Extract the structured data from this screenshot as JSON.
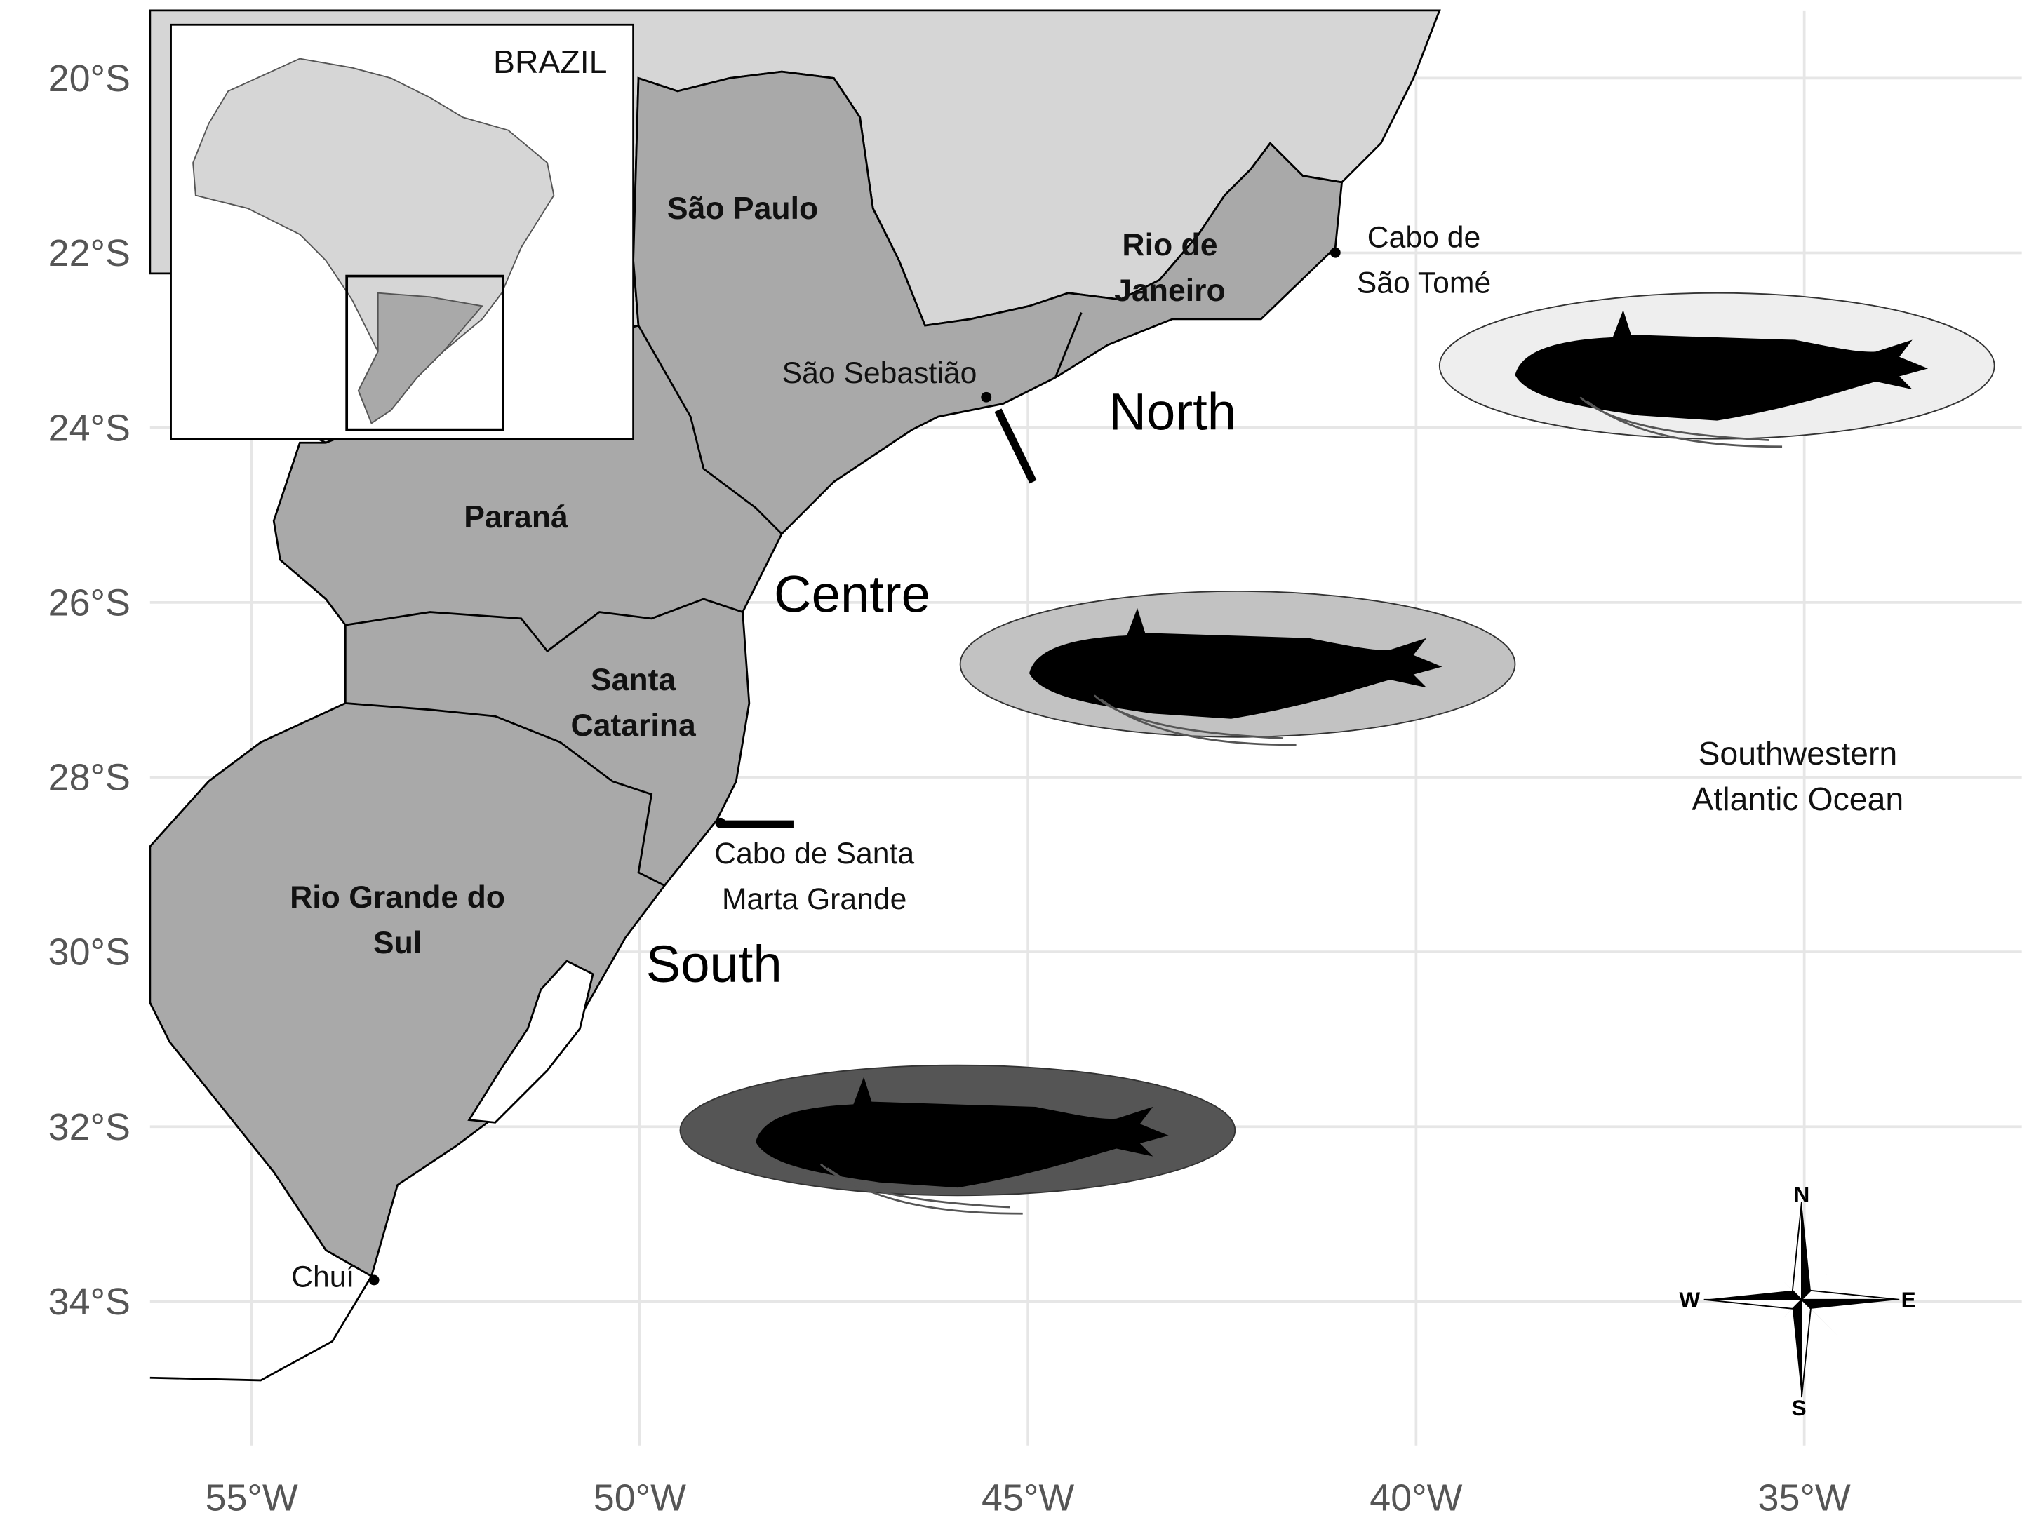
{
  "map": {
    "lat_ticks": [
      {
        "value": -20,
        "label": "20°S"
      },
      {
        "value": -22,
        "label": "22°S"
      },
      {
        "value": -24,
        "label": "24°S"
      },
      {
        "value": -26,
        "label": "26°S"
      },
      {
        "value": -28,
        "label": "28°S"
      },
      {
        "value": -30,
        "label": "30°S"
      },
      {
        "value": -32,
        "label": "32°S"
      },
      {
        "value": -34,
        "label": "34°S"
      }
    ],
    "lon_ticks": [
      {
        "value": -55,
        "label": "55°W"
      },
      {
        "value": -50,
        "label": "50°W"
      },
      {
        "value": -45,
        "label": "45°W"
      },
      {
        "value": -40,
        "label": "40°W"
      },
      {
        "value": -35,
        "label": "35°W"
      }
    ],
    "states": [
      {
        "lines": [
          "São Paulo"
        ]
      },
      {
        "lines": [
          "Rio de",
          "Janeiro"
        ]
      },
      {
        "lines": [
          "Paraná"
        ]
      },
      {
        "lines": [
          "Santa",
          "Catarina"
        ]
      },
      {
        "lines": [
          "Rio Grande do",
          "Sul"
        ]
      }
    ],
    "places": [
      {
        "lines": [
          "São Sebastião"
        ]
      },
      {
        "lines": [
          "Cabo de",
          "São Tomé"
        ]
      },
      {
        "lines": [
          "Cabo de Santa",
          "Marta Grande"
        ]
      },
      {
        "lines": [
          "Chuí"
        ]
      }
    ],
    "regions": [
      "North",
      "Centre",
      "South"
    ],
    "ocean": [
      "Southwestern",
      "Atlantic Ocean"
    ],
    "inset": {
      "title": "BRAZIL"
    },
    "compass": [
      "N",
      "E",
      "S",
      "W"
    ]
  }
}
